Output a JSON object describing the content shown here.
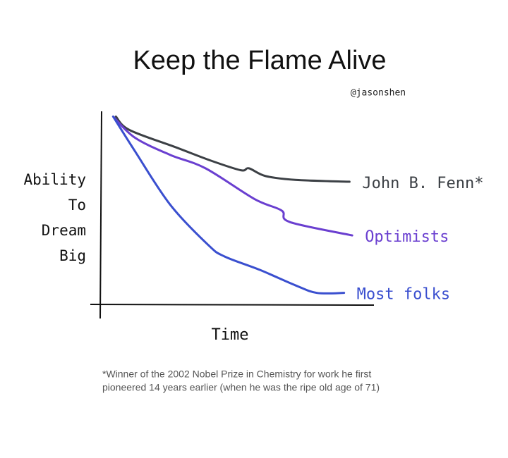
{
  "chart_data": {
    "type": "line",
    "title": "Keep the Flame Alive",
    "credit": "@jasonshen",
    "y_label": [
      "Ability",
      "To",
      "Dream",
      "Big"
    ],
    "x_label": "Time",
    "footnote": [
      "*Winner of the 2002 Nobel Prize in Chemistry for work he first",
      "pioneered 14 years earlier (when he was the ripe old age of 71)"
    ],
    "xlim": [
      0,
      100
    ],
    "ylim": [
      0,
      100
    ],
    "series": [
      {
        "name": "John B. Fenn*",
        "color": "#3c4045",
        "x": [
          5,
          10,
          27,
          40,
          51,
          54,
          60,
          71,
          91
        ],
        "values": [
          98,
          91,
          82,
          75,
          70,
          71,
          67,
          65,
          64
        ]
      },
      {
        "name": "Optimists",
        "color": "#6a3fd0",
        "x": [
          4,
          12,
          25,
          38,
          56,
          66,
          69,
          92
        ],
        "values": [
          98,
          87,
          78,
          71,
          55,
          49,
          43,
          36
        ]
      },
      {
        "name": "Most folks",
        "color": "#3a4fcf",
        "x": [
          4,
          12,
          25,
          39,
          45,
          58,
          71,
          79,
          89
        ],
        "values": [
          98,
          80,
          52,
          31,
          25,
          18,
          10,
          6,
          6
        ]
      }
    ]
  }
}
